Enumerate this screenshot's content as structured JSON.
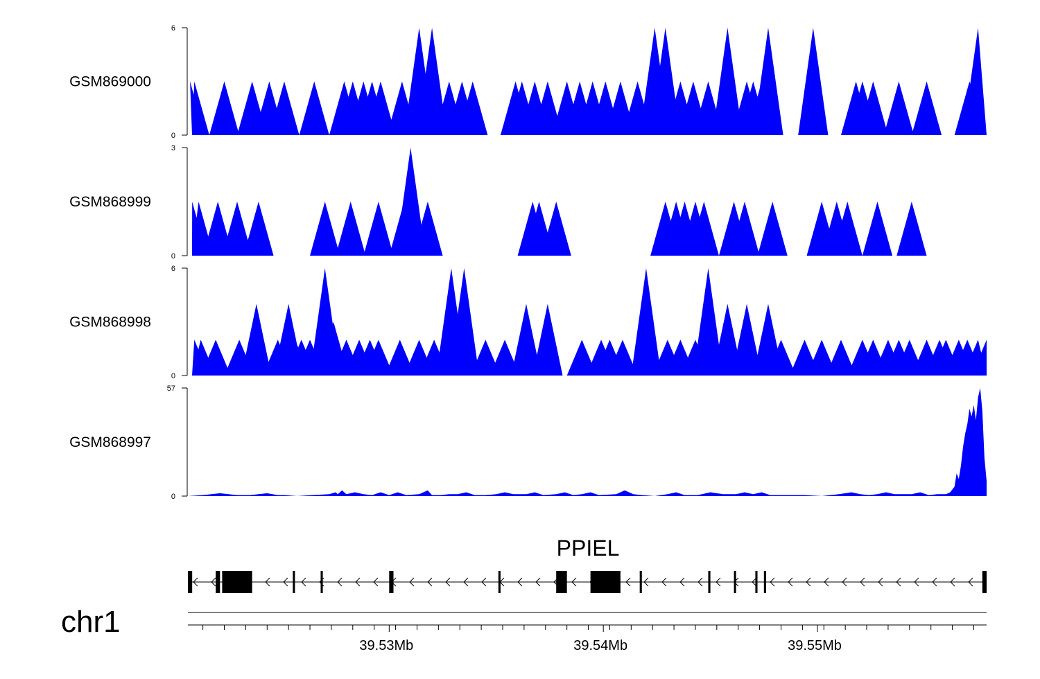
{
  "chart_data": {
    "type": "area",
    "title": "",
    "x_range_mb": [
      39.5206,
      39.5579
    ],
    "tracks": [
      {
        "name": "GSM869000",
        "ymax": "6",
        "ymin": "0",
        "ylim": [
          0,
          6
        ],
        "peaks": [
          [
            39.5207,
            3
          ],
          [
            39.5209,
            3
          ],
          [
            39.5223,
            3
          ],
          [
            39.5236,
            3
          ],
          [
            39.5244,
            3
          ],
          [
            39.5251,
            3
          ],
          [
            39.5265,
            3
          ],
          [
            39.5279,
            3
          ],
          [
            39.5283,
            3
          ],
          [
            39.5288,
            3
          ],
          [
            39.5292,
            3
          ],
          [
            39.5296,
            3
          ],
          [
            39.5306,
            3
          ],
          [
            39.5314,
            6
          ],
          [
            39.532,
            6
          ],
          [
            39.5328,
            3
          ],
          [
            39.5334,
            3
          ],
          [
            39.5339,
            3
          ],
          [
            39.5359,
            3
          ],
          [
            39.5362,
            3
          ],
          [
            39.5368,
            3
          ],
          [
            39.5374,
            3
          ],
          [
            39.5383,
            3
          ],
          [
            39.5389,
            3
          ],
          [
            39.5395,
            3
          ],
          [
            39.5401,
            3
          ],
          [
            39.5408,
            3
          ],
          [
            39.5416,
            3
          ],
          [
            39.5424,
            6
          ],
          [
            39.5429,
            6
          ],
          [
            39.5436,
            3
          ],
          [
            39.5442,
            3
          ],
          [
            39.5449,
            3
          ],
          [
            39.5458,
            6
          ],
          [
            39.5467,
            3
          ],
          [
            39.547,
            3
          ],
          [
            39.5474,
            3
          ],
          [
            39.5477,
            6
          ],
          [
            39.5498,
            6
          ],
          [
            39.5518,
            3
          ],
          [
            39.5521,
            3
          ],
          [
            39.5526,
            3
          ],
          [
            39.5538,
            3
          ],
          [
            39.5551,
            3
          ],
          [
            39.5571,
            3
          ],
          [
            39.5575,
            6
          ]
        ]
      },
      {
        "name": "GSM868999",
        "ymax": "3",
        "ymin": "0",
        "ylim": [
          0,
          3
        ],
        "peaks": [
          [
            39.5208,
            1.5
          ],
          [
            39.5211,
            1.5
          ],
          [
            39.522,
            1.5
          ],
          [
            39.5229,
            1.5
          ],
          [
            39.5239,
            1.5
          ],
          [
            39.527,
            1.5
          ],
          [
            39.5282,
            1.5
          ],
          [
            39.5295,
            1.5
          ],
          [
            39.5307,
            1.5
          ],
          [
            39.531,
            3
          ],
          [
            39.5318,
            1.5
          ],
          [
            39.5367,
            1.5
          ],
          [
            39.537,
            1.5
          ],
          [
            39.5378,
            1.5
          ],
          [
            39.5429,
            1.5
          ],
          [
            39.5434,
            1.5
          ],
          [
            39.5438,
            1.5
          ],
          [
            39.5443,
            1.5
          ],
          [
            39.5447,
            1.5
          ],
          [
            39.5461,
            1.5
          ],
          [
            39.5466,
            1.5
          ],
          [
            39.5479,
            1.5
          ],
          [
            39.5502,
            1.5
          ],
          [
            39.5509,
            1.5
          ],
          [
            39.5514,
            1.5
          ],
          [
            39.5528,
            1.5
          ],
          [
            39.5544,
            1.5
          ]
        ]
      },
      {
        "name": "GSM868998",
        "ymax": "6",
        "ymin": "0",
        "ylim": [
          0,
          6
        ],
        "peaks": [
          [
            39.5209,
            2
          ],
          [
            39.5212,
            2
          ],
          [
            39.5219,
            2
          ],
          [
            39.523,
            2
          ],
          [
            39.5238,
            4
          ],
          [
            39.5248,
            2
          ],
          [
            39.5253,
            4
          ],
          [
            39.5256,
            2
          ],
          [
            39.5259,
            2
          ],
          [
            39.5263,
            2
          ],
          [
            39.5268,
            2
          ],
          [
            39.527,
            6
          ],
          [
            39.5274,
            3
          ],
          [
            39.528,
            2
          ],
          [
            39.5286,
            2
          ],
          [
            39.5291,
            2
          ],
          [
            39.5295,
            2
          ],
          [
            39.5305,
            2
          ],
          [
            39.5314,
            2
          ],
          [
            39.5321,
            2
          ],
          [
            39.5329,
            6
          ],
          [
            39.5333,
            2
          ],
          [
            39.5335,
            6
          ],
          [
            39.5345,
            2
          ],
          [
            39.5354,
            2
          ],
          [
            39.5364,
            4
          ],
          [
            39.5374,
            4
          ],
          [
            39.539,
            2
          ],
          [
            39.5399,
            2
          ],
          [
            39.5403,
            2
          ],
          [
            39.5409,
            2
          ],
          [
            39.542,
            6
          ],
          [
            39.543,
            2
          ],
          [
            39.5436,
            2
          ],
          [
            39.5443,
            2
          ],
          [
            39.5449,
            6
          ],
          [
            39.5458,
            4
          ],
          [
            39.5467,
            4
          ],
          [
            39.5477,
            4
          ],
          [
            39.5483,
            2
          ],
          [
            39.5494,
            2
          ],
          [
            39.5502,
            2
          ],
          [
            39.5511,
            2
          ],
          [
            39.5521,
            2
          ],
          [
            39.5526,
            2
          ],
          [
            39.5533,
            2
          ],
          [
            39.5538,
            2
          ],
          [
            39.5543,
            2
          ],
          [
            39.5551,
            2
          ],
          [
            39.5557,
            2
          ],
          [
            39.556,
            2
          ],
          [
            39.5566,
            2
          ],
          [
            39.557,
            2
          ],
          [
            39.5575,
            2
          ],
          [
            39.5579,
            2
          ]
        ]
      },
      {
        "name": "GSM868997",
        "ymax": "57",
        "ymin": "0",
        "ylim": [
          0,
          57
        ],
        "points": [
          [
            39.5206,
            0
          ],
          [
            39.5213,
            0.5
          ],
          [
            39.5221,
            1.5
          ],
          [
            39.5229,
            0.5
          ],
          [
            39.5235,
            0.5
          ],
          [
            39.5243,
            1.5
          ],
          [
            39.5248,
            0.5
          ],
          [
            39.5251,
            0.5
          ],
          [
            39.5257,
            0
          ],
          [
            39.5264,
            0.5
          ],
          [
            39.5272,
            1
          ],
          [
            39.5275,
            2
          ],
          [
            39.5276,
            1
          ],
          [
            39.5278,
            3
          ],
          [
            39.528,
            1
          ],
          [
            39.5284,
            2
          ],
          [
            39.5288,
            1
          ],
          [
            39.5292,
            0.5
          ],
          [
            39.5296,
            2
          ],
          [
            39.53,
            0.5
          ],
          [
            39.5304,
            2
          ],
          [
            39.5308,
            0.5
          ],
          [
            39.5314,
            1
          ],
          [
            39.5318,
            3
          ],
          [
            39.532,
            0.5
          ],
          [
            39.5324,
            0.5
          ],
          [
            39.5328,
            1
          ],
          [
            39.5332,
            1
          ],
          [
            39.5336,
            2
          ],
          [
            39.534,
            0.5
          ],
          [
            39.5345,
            0.5
          ],
          [
            39.535,
            1
          ],
          [
            39.5354,
            2
          ],
          [
            39.5358,
            1
          ],
          [
            39.5364,
            1
          ],
          [
            39.5368,
            2
          ],
          [
            39.5372,
            0.5
          ],
          [
            39.5378,
            1
          ],
          [
            39.5382,
            2
          ],
          [
            39.5386,
            0.5
          ],
          [
            39.539,
            1
          ],
          [
            39.5394,
            2
          ],
          [
            39.5398,
            0.5
          ],
          [
            39.5406,
            1
          ],
          [
            39.541,
            3
          ],
          [
            39.5414,
            1
          ],
          [
            39.5418,
            0.5
          ],
          [
            39.5424,
            0
          ],
          [
            39.543,
            1
          ],
          [
            39.5434,
            2
          ],
          [
            39.5438,
            0.5
          ],
          [
            39.5444,
            0.5
          ],
          [
            39.545,
            2
          ],
          [
            39.5456,
            1
          ],
          [
            39.5462,
            1
          ],
          [
            39.5466,
            2
          ],
          [
            39.547,
            1
          ],
          [
            39.5474,
            2
          ],
          [
            39.5478,
            0.5
          ],
          [
            39.5486,
            0.5
          ],
          [
            39.5494,
            0.5
          ],
          [
            39.5502,
            0
          ],
          [
            39.551,
            1
          ],
          [
            39.5516,
            2
          ],
          [
            39.552,
            1
          ],
          [
            39.5524,
            0.5
          ],
          [
            39.5528,
            1
          ],
          [
            39.5532,
            2
          ],
          [
            39.5536,
            1
          ],
          [
            39.554,
            1
          ],
          [
            39.5544,
            1
          ],
          [
            39.5548,
            2
          ],
          [
            39.5552,
            0.5
          ],
          [
            39.5556,
            1
          ],
          [
            39.556,
            1
          ],
          [
            39.5562,
            2
          ],
          [
            39.5564,
            5
          ],
          [
            39.5565,
            12
          ],
          [
            39.5566,
            9
          ],
          [
            39.5567,
            16
          ],
          [
            39.5568,
            26
          ],
          [
            39.5569,
            33
          ],
          [
            39.557,
            38
          ],
          [
            39.5571,
            46
          ],
          [
            39.5572,
            42
          ],
          [
            39.5573,
            48
          ],
          [
            39.5574,
            40
          ],
          [
            39.5575,
            52
          ],
          [
            39.5576,
            57
          ],
          [
            39.5577,
            45
          ],
          [
            39.5578,
            20
          ],
          [
            39.5579,
            8
          ]
        ]
      }
    ],
    "gene": {
      "name": "PPIEL",
      "strand": "-",
      "exons": [
        [
          39.5206,
          39.5208
        ],
        [
          39.5219,
          39.5221
        ],
        [
          39.5222,
          39.5236
        ],
        [
          39.5255,
          39.5256
        ],
        [
          39.5268,
          39.5269
        ],
        [
          39.53,
          39.5302
        ],
        [
          39.5351,
          39.5352
        ],
        [
          39.5378,
          39.5383
        ],
        [
          39.5394,
          39.5408
        ],
        [
          39.5417,
          39.5418
        ],
        [
          39.5449,
          39.545
        ],
        [
          39.5461,
          39.5462
        ],
        [
          39.5471,
          39.5472
        ],
        [
          39.5475,
          39.5476
        ],
        [
          39.5577,
          39.5579
        ]
      ]
    },
    "axis": {
      "chromosome": "chr1",
      "ticks_mb": [
        39.5213,
        39.5223,
        39.5233,
        39.5243,
        39.5253,
        39.5263,
        39.5273,
        39.5283,
        39.5293,
        39.5303,
        39.5313,
        39.5323,
        39.5333,
        39.5343,
        39.5353,
        39.5363,
        39.5373,
        39.5383,
        39.5393,
        39.5403,
        39.5413,
        39.5423,
        39.5433,
        39.5443,
        39.5453,
        39.5463,
        39.5473,
        39.5483,
        39.5493,
        39.5503,
        39.5513,
        39.5523,
        39.5533,
        39.5543,
        39.5553,
        39.5563,
        39.5573
      ],
      "labeled_ticks": [
        {
          "mb": 39.53,
          "label": "39.53Mb"
        },
        {
          "mb": 39.54,
          "label": "39.54Mb"
        },
        {
          "mb": 39.55,
          "label": "39.55Mb"
        }
      ]
    },
    "colors": {
      "coverage": "#0000ff",
      "gene": "#000000",
      "axis": "#000000"
    }
  }
}
